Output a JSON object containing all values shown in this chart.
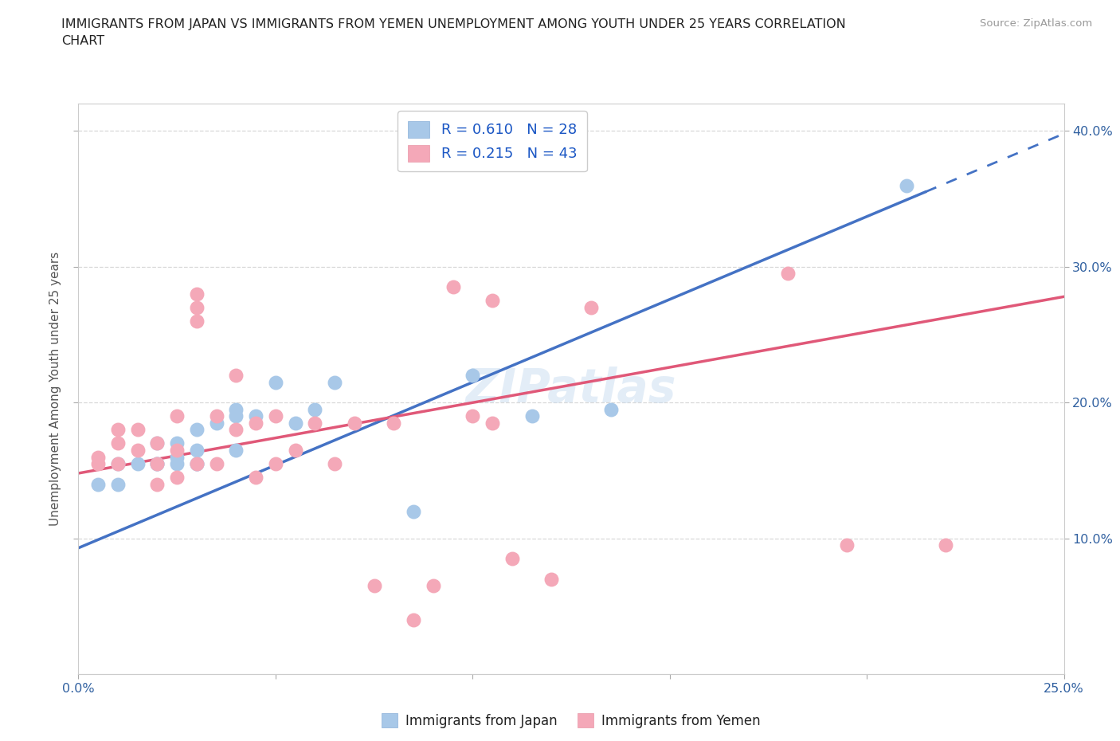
{
  "title_line1": "IMMIGRANTS FROM JAPAN VS IMMIGRANTS FROM YEMEN UNEMPLOYMENT AMONG YOUTH UNDER 25 YEARS CORRELATION",
  "title_line2": "CHART",
  "source": "Source: ZipAtlas.com",
  "ylabel": "Unemployment Among Youth under 25 years",
  "xlim": [
    0.0,
    0.25
  ],
  "ylim": [
    0.0,
    0.42
  ],
  "xtick_left_label": "0.0%",
  "xtick_right_label": "25.0%",
  "ytick_labels_right": [
    "10.0%",
    "20.0%",
    "30.0%",
    "40.0%"
  ],
  "ytick_vals": [
    0.1,
    0.2,
    0.3,
    0.4
  ],
  "japan_color": "#a8c8e8",
  "yemen_color": "#f4a8b8",
  "japan_line_color": "#4472c4",
  "yemen_line_color": "#e05878",
  "R_japan": 0.61,
  "N_japan": 28,
  "R_yemen": 0.215,
  "N_yemen": 43,
  "japan_scatter_x": [
    0.005,
    0.01,
    0.01,
    0.015,
    0.02,
    0.02,
    0.02,
    0.025,
    0.025,
    0.025,
    0.03,
    0.03,
    0.03,
    0.03,
    0.035,
    0.04,
    0.04,
    0.04,
    0.045,
    0.05,
    0.055,
    0.06,
    0.065,
    0.085,
    0.1,
    0.115,
    0.135,
    0.21
  ],
  "japan_scatter_y": [
    0.14,
    0.155,
    0.14,
    0.155,
    0.155,
    0.155,
    0.17,
    0.16,
    0.155,
    0.17,
    0.18,
    0.155,
    0.165,
    0.155,
    0.185,
    0.19,
    0.195,
    0.165,
    0.19,
    0.215,
    0.185,
    0.195,
    0.215,
    0.12,
    0.22,
    0.19,
    0.195,
    0.36
  ],
  "yemen_scatter_x": [
    0.005,
    0.005,
    0.01,
    0.01,
    0.01,
    0.015,
    0.015,
    0.02,
    0.02,
    0.02,
    0.025,
    0.025,
    0.025,
    0.03,
    0.03,
    0.03,
    0.03,
    0.035,
    0.035,
    0.04,
    0.04,
    0.045,
    0.045,
    0.05,
    0.05,
    0.055,
    0.06,
    0.065,
    0.07,
    0.075,
    0.08,
    0.085,
    0.09,
    0.095,
    0.1,
    0.105,
    0.105,
    0.11,
    0.12,
    0.13,
    0.18,
    0.195,
    0.22
  ],
  "yemen_scatter_y": [
    0.16,
    0.155,
    0.18,
    0.17,
    0.155,
    0.18,
    0.165,
    0.14,
    0.17,
    0.155,
    0.19,
    0.165,
    0.145,
    0.26,
    0.27,
    0.28,
    0.155,
    0.19,
    0.155,
    0.18,
    0.22,
    0.185,
    0.145,
    0.19,
    0.155,
    0.165,
    0.185,
    0.155,
    0.185,
    0.065,
    0.185,
    0.04,
    0.065,
    0.285,
    0.19,
    0.185,
    0.275,
    0.085,
    0.07,
    0.27,
    0.295,
    0.095,
    0.095
  ],
  "watermark": "ZIPatlas",
  "legend_text_color": "#1a56c4",
  "background_color": "#ffffff",
  "grid_color": "#d8d8d8",
  "japan_trendline_intercept": 0.093,
  "japan_trendline_slope": 1.22,
  "yemen_trendline_intercept": 0.148,
  "yemen_trendline_slope": 0.52
}
